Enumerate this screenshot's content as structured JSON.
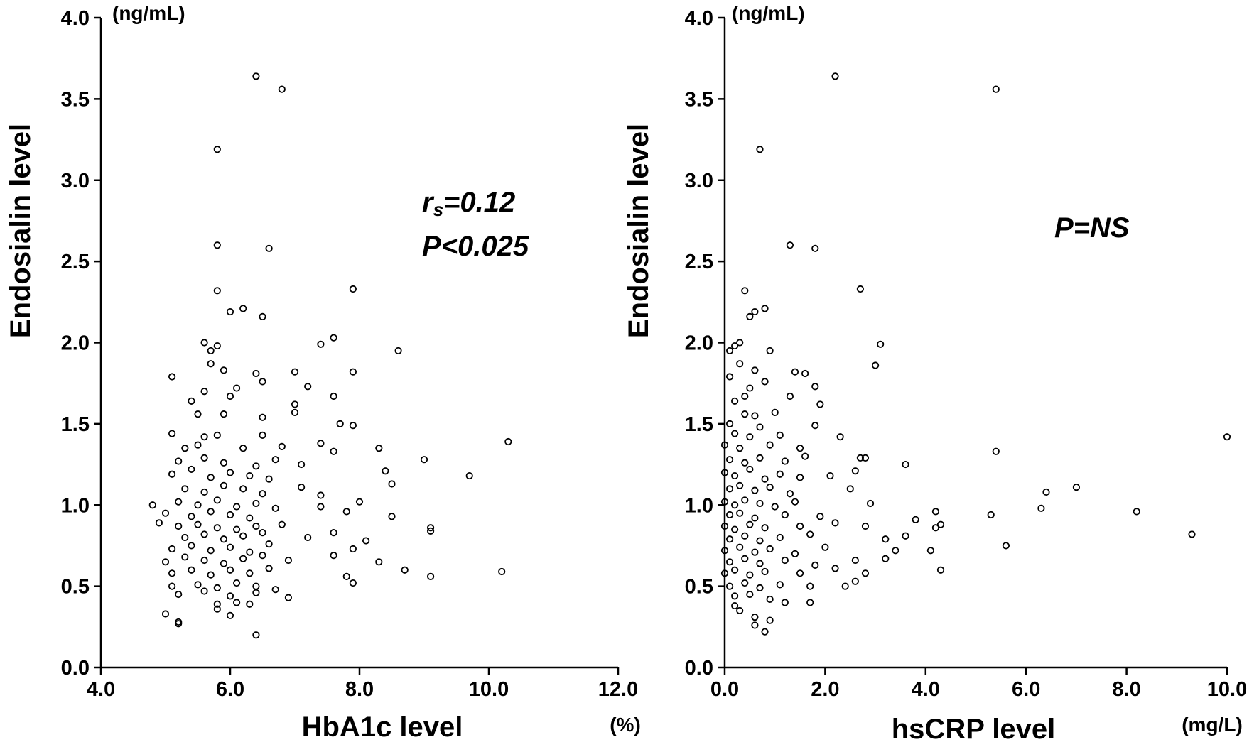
{
  "chart_data": [
    {
      "type": "scatter",
      "xlabel": "HbA1c level",
      "ylabel": "Endosialin level",
      "x_unit": "(%)",
      "y_unit": "(ng/mL)",
      "xlim": [
        4.0,
        12.0
      ],
      "ylim": [
        0.0,
        4.0
      ],
      "x_ticks": [
        "4.0",
        "6.0",
        "8.0",
        "10.0",
        "12.0"
      ],
      "y_ticks": [
        "0.0",
        "0.5",
        "1.0",
        "1.5",
        "2.0",
        "2.5",
        "3.0",
        "3.5",
        "4.0"
      ],
      "annotation_subscript": "r",
      "annotation_sub": "s",
      "annotation_rs_value": "=0.12",
      "annotation_p": "P<0.025",
      "grid": false,
      "points": [
        [
          6.4,
          3.64
        ],
        [
          6.8,
          3.56
        ],
        [
          5.8,
          3.19
        ],
        [
          5.8,
          2.6
        ],
        [
          6.6,
          2.58
        ],
        [
          5.8,
          2.32
        ],
        [
          7.9,
          2.33
        ],
        [
          6.0,
          2.19
        ],
        [
          6.2,
          2.21
        ],
        [
          6.5,
          2.16
        ],
        [
          5.6,
          2.0
        ],
        [
          5.8,
          1.98
        ],
        [
          5.7,
          1.95
        ],
        [
          7.6,
          2.03
        ],
        [
          7.4,
          1.99
        ],
        [
          8.6,
          1.95
        ],
        [
          5.7,
          1.87
        ],
        [
          5.9,
          1.83
        ],
        [
          6.4,
          1.81
        ],
        [
          7.0,
          1.82
        ],
        [
          7.9,
          1.82
        ],
        [
          5.1,
          1.79
        ],
        [
          6.5,
          1.76
        ],
        [
          7.2,
          1.73
        ],
        [
          6.1,
          1.72
        ],
        [
          5.6,
          1.7
        ],
        [
          5.4,
          1.64
        ],
        [
          6.0,
          1.67
        ],
        [
          7.6,
          1.67
        ],
        [
          7.0,
          1.62
        ],
        [
          5.5,
          1.56
        ],
        [
          5.9,
          1.56
        ],
        [
          6.5,
          1.54
        ],
        [
          7.0,
          1.57
        ],
        [
          7.7,
          1.5
        ],
        [
          7.9,
          1.49
        ],
        [
          5.1,
          1.44
        ],
        [
          5.6,
          1.42
        ],
        [
          5.8,
          1.43
        ],
        [
          6.5,
          1.43
        ],
        [
          7.4,
          1.38
        ],
        [
          5.3,
          1.35
        ],
        [
          5.5,
          1.37
        ],
        [
          6.2,
          1.35
        ],
        [
          6.8,
          1.36
        ],
        [
          7.6,
          1.33
        ],
        [
          8.3,
          1.35
        ],
        [
          10.3,
          1.39
        ],
        [
          5.2,
          1.27
        ],
        [
          5.6,
          1.29
        ],
        [
          5.9,
          1.26
        ],
        [
          6.4,
          1.24
        ],
        [
          6.7,
          1.28
        ],
        [
          7.1,
          1.25
        ],
        [
          9.0,
          1.28
        ],
        [
          5.1,
          1.19
        ],
        [
          5.4,
          1.22
        ],
        [
          5.7,
          1.17
        ],
        [
          6.0,
          1.2
        ],
        [
          6.3,
          1.18
        ],
        [
          6.6,
          1.16
        ],
        [
          8.4,
          1.21
        ],
        [
          9.7,
          1.18
        ],
        [
          5.3,
          1.1
        ],
        [
          5.6,
          1.08
        ],
        [
          5.9,
          1.12
        ],
        [
          6.2,
          1.1
        ],
        [
          6.5,
          1.07
        ],
        [
          7.1,
          1.11
        ],
        [
          7.4,
          1.06
        ],
        [
          8.5,
          1.13
        ],
        [
          5.2,
          1.02
        ],
        [
          5.5,
          1.0
        ],
        [
          5.8,
          1.03
        ],
        [
          6.1,
          0.99
        ],
        [
          6.4,
          1.01
        ],
        [
          6.7,
          0.98
        ],
        [
          7.4,
          0.99
        ],
        [
          8.0,
          1.02
        ],
        [
          4.8,
          1.0
        ],
        [
          5.0,
          0.95
        ],
        [
          5.4,
          0.93
        ],
        [
          5.7,
          0.96
        ],
        [
          6.0,
          0.94
        ],
        [
          6.3,
          0.92
        ],
        [
          7.8,
          0.96
        ],
        [
          8.5,
          0.93
        ],
        [
          4.9,
          0.89
        ],
        [
          5.2,
          0.87
        ],
        [
          5.5,
          0.88
        ],
        [
          5.8,
          0.86
        ],
        [
          6.1,
          0.85
        ],
        [
          6.4,
          0.87
        ],
        [
          6.8,
          0.88
        ],
        [
          9.1,
          0.86
        ],
        [
          5.3,
          0.8
        ],
        [
          5.6,
          0.82
        ],
        [
          5.9,
          0.79
        ],
        [
          6.2,
          0.81
        ],
        [
          6.5,
          0.83
        ],
        [
          7.2,
          0.8
        ],
        [
          7.6,
          0.83
        ],
        [
          8.1,
          0.78
        ],
        [
          9.1,
          0.84
        ],
        [
          5.1,
          0.73
        ],
        [
          5.4,
          0.75
        ],
        [
          5.7,
          0.72
        ],
        [
          6.0,
          0.74
        ],
        [
          6.3,
          0.71
        ],
        [
          6.6,
          0.76
        ],
        [
          7.9,
          0.73
        ],
        [
          5.0,
          0.65
        ],
        [
          5.3,
          0.68
        ],
        [
          5.6,
          0.66
        ],
        [
          5.9,
          0.64
        ],
        [
          6.2,
          0.67
        ],
        [
          6.5,
          0.69
        ],
        [
          6.9,
          0.66
        ],
        [
          7.6,
          0.69
        ],
        [
          8.3,
          0.65
        ],
        [
          5.1,
          0.58
        ],
        [
          5.4,
          0.6
        ],
        [
          5.7,
          0.57
        ],
        [
          6.0,
          0.6
        ],
        [
          6.3,
          0.58
        ],
        [
          6.6,
          0.61
        ],
        [
          7.8,
          0.56
        ],
        [
          8.7,
          0.6
        ],
        [
          9.1,
          0.56
        ],
        [
          10.2,
          0.59
        ],
        [
          5.1,
          0.5
        ],
        [
          5.5,
          0.51
        ],
        [
          5.8,
          0.49
        ],
        [
          6.1,
          0.52
        ],
        [
          6.4,
          0.5
        ],
        [
          6.7,
          0.48
        ],
        [
          7.9,
          0.52
        ],
        [
          5.2,
          0.45
        ],
        [
          5.6,
          0.47
        ],
        [
          6.0,
          0.44
        ],
        [
          6.4,
          0.46
        ],
        [
          6.9,
          0.43
        ],
        [
          5.8,
          0.39
        ],
        [
          6.1,
          0.4
        ],
        [
          6.3,
          0.39
        ],
        [
          5.0,
          0.33
        ],
        [
          5.8,
          0.36
        ],
        [
          6.0,
          0.32
        ],
        [
          5.2,
          0.28
        ],
        [
          5.2,
          0.27
        ],
        [
          6.4,
          0.2
        ]
      ]
    },
    {
      "type": "scatter",
      "xlabel": "hsCRP level",
      "ylabel": "Endosialin level",
      "x_unit": "(mg/L)",
      "y_unit": "(ng/mL)",
      "xlim": [
        0.0,
        10.0
      ],
      "ylim": [
        0.0,
        4.0
      ],
      "x_ticks": [
        "0.0",
        "2.0",
        "4.0",
        "6.0",
        "8.0",
        "10.0"
      ],
      "y_ticks": [
        "0.0",
        "0.5",
        "1.0",
        "1.5",
        "2.0",
        "2.5",
        "3.0",
        "3.5",
        "4.0"
      ],
      "annotation_p": "P=NS",
      "grid": false,
      "points": [
        [
          2.2,
          3.64
        ],
        [
          5.4,
          3.56
        ],
        [
          0.7,
          3.19
        ],
        [
          1.3,
          2.6
        ],
        [
          1.8,
          2.58
        ],
        [
          0.4,
          2.32
        ],
        [
          2.7,
          2.33
        ],
        [
          0.6,
          2.19
        ],
        [
          0.8,
          2.21
        ],
        [
          0.5,
          2.16
        ],
        [
          0.3,
          2.0
        ],
        [
          0.2,
          1.98
        ],
        [
          0.1,
          1.95
        ],
        [
          0.9,
          1.95
        ],
        [
          3.0,
          1.86
        ],
        [
          3.1,
          1.99
        ],
        [
          0.3,
          1.87
        ],
        [
          0.6,
          1.83
        ],
        [
          1.4,
          1.82
        ],
        [
          1.6,
          1.81
        ],
        [
          0.1,
          1.79
        ],
        [
          0.8,
          1.76
        ],
        [
          1.8,
          1.73
        ],
        [
          0.5,
          1.72
        ],
        [
          0.4,
          1.67
        ],
        [
          1.3,
          1.67
        ],
        [
          1.9,
          1.62
        ],
        [
          0.2,
          1.64
        ],
        [
          0.4,
          1.56
        ],
        [
          0.6,
          1.55
        ],
        [
          1.0,
          1.57
        ],
        [
          0.1,
          1.5
        ],
        [
          0.7,
          1.48
        ],
        [
          1.8,
          1.49
        ],
        [
          0.2,
          1.44
        ],
        [
          0.5,
          1.42
        ],
        [
          1.1,
          1.43
        ],
        [
          2.3,
          1.42
        ],
        [
          10.0,
          1.42
        ],
        [
          0.0,
          1.37
        ],
        [
          0.3,
          1.35
        ],
        [
          0.9,
          1.37
        ],
        [
          1.5,
          1.35
        ],
        [
          5.4,
          1.33
        ],
        [
          0.1,
          1.28
        ],
        [
          0.4,
          1.26
        ],
        [
          0.7,
          1.29
        ],
        [
          1.2,
          1.27
        ],
        [
          1.6,
          1.3
        ],
        [
          2.7,
          1.29
        ],
        [
          2.8,
          1.29
        ],
        [
          3.6,
          1.25
        ],
        [
          0.0,
          1.2
        ],
        [
          0.2,
          1.18
        ],
        [
          0.5,
          1.22
        ],
        [
          0.8,
          1.16
        ],
        [
          1.1,
          1.19
        ],
        [
          1.5,
          1.17
        ],
        [
          2.1,
          1.18
        ],
        [
          2.6,
          1.21
        ],
        [
          0.1,
          1.1
        ],
        [
          0.3,
          1.12
        ],
        [
          0.6,
          1.09
        ],
        [
          0.9,
          1.11
        ],
        [
          1.3,
          1.07
        ],
        [
          2.5,
          1.1
        ],
        [
          6.4,
          1.08
        ],
        [
          7.0,
          1.11
        ],
        [
          0.0,
          1.02
        ],
        [
          0.2,
          1.0
        ],
        [
          0.4,
          1.03
        ],
        [
          0.7,
          1.01
        ],
        [
          1.0,
          0.99
        ],
        [
          1.4,
          1.02
        ],
        [
          2.9,
          1.01
        ],
        [
          6.3,
          0.98
        ],
        [
          0.1,
          0.94
        ],
        [
          0.3,
          0.95
        ],
        [
          0.6,
          0.92
        ],
        [
          1.2,
          0.94
        ],
        [
          1.9,
          0.93
        ],
        [
          3.8,
          0.91
        ],
        [
          4.2,
          0.96
        ],
        [
          5.3,
          0.94
        ],
        [
          8.2,
          0.96
        ],
        [
          0.0,
          0.87
        ],
        [
          0.2,
          0.85
        ],
        [
          0.5,
          0.88
        ],
        [
          0.8,
          0.86
        ],
        [
          1.5,
          0.87
        ],
        [
          2.2,
          0.89
        ],
        [
          2.8,
          0.87
        ],
        [
          4.2,
          0.86
        ],
        [
          4.3,
          0.88
        ],
        [
          0.1,
          0.79
        ],
        [
          0.4,
          0.81
        ],
        [
          0.7,
          0.78
        ],
        [
          1.1,
          0.8
        ],
        [
          1.7,
          0.82
        ],
        [
          3.2,
          0.79
        ],
        [
          3.6,
          0.81
        ],
        [
          9.3,
          0.82
        ],
        [
          0.0,
          0.72
        ],
        [
          0.3,
          0.74
        ],
        [
          0.6,
          0.71
        ],
        [
          0.9,
          0.73
        ],
        [
          1.4,
          0.7
        ],
        [
          2.0,
          0.74
        ],
        [
          3.4,
          0.72
        ],
        [
          4.1,
          0.72
        ],
        [
          5.6,
          0.75
        ],
        [
          0.1,
          0.65
        ],
        [
          0.4,
          0.67
        ],
        [
          0.7,
          0.64
        ],
        [
          1.2,
          0.66
        ],
        [
          1.8,
          0.63
        ],
        [
          2.6,
          0.66
        ],
        [
          3.2,
          0.67
        ],
        [
          0.0,
          0.58
        ],
        [
          0.2,
          0.6
        ],
        [
          0.5,
          0.57
        ],
        [
          0.8,
          0.59
        ],
        [
          1.5,
          0.58
        ],
        [
          2.2,
          0.61
        ],
        [
          2.8,
          0.58
        ],
        [
          4.3,
          0.6
        ],
        [
          0.1,
          0.5
        ],
        [
          0.4,
          0.52
        ],
        [
          0.7,
          0.49
        ],
        [
          1.1,
          0.51
        ],
        [
          1.7,
          0.5
        ],
        [
          2.4,
          0.5
        ],
        [
          2.6,
          0.53
        ],
        [
          0.2,
          0.44
        ],
        [
          0.5,
          0.45
        ],
        [
          0.9,
          0.42
        ],
        [
          1.2,
          0.4
        ],
        [
          1.7,
          0.4
        ],
        [
          0.2,
          0.38
        ],
        [
          0.3,
          0.35
        ],
        [
          0.6,
          0.31
        ],
        [
          0.9,
          0.29
        ],
        [
          0.6,
          0.26
        ],
        [
          0.8,
          0.22
        ]
      ]
    }
  ]
}
